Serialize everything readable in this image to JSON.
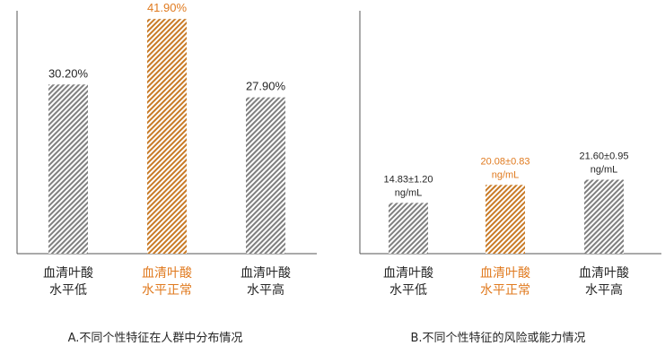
{
  "colors": {
    "normal_bar": "#7f7f7f",
    "highlight_bar": "#c87a26",
    "normal_text": "#262626",
    "highlight_text": "#e07a1f",
    "axis": "#555555"
  },
  "chart_data": [
    {
      "type": "bar",
      "title": "",
      "caption": "A.不同个性特征在人群中分布情况",
      "xlabel": "",
      "ylabel": "",
      "grid": false,
      "legend": "none",
      "unit": "%",
      "categories": [
        "血清叶酸水平低",
        "血清叶酸水平正常",
        "血清叶酸水平高"
      ],
      "category_lines": [
        [
          "血清叶酸",
          "水平低"
        ],
        [
          "血清叶酸",
          "水平正常"
        ],
        [
          "血清叶酸",
          "水平高"
        ]
      ],
      "values": [
        30.2,
        41.9,
        27.9
      ],
      "data_labels": [
        [
          "30.20%"
        ],
        [
          "41.90%"
        ],
        [
          "27.90%"
        ]
      ],
      "highlight_index": 1,
      "ylim": [
        0,
        44
      ]
    },
    {
      "type": "bar",
      "title": "",
      "caption": "B.不同个性特征的风险或能力情况",
      "xlabel": "",
      "ylabel": "",
      "grid": false,
      "legend": "none",
      "unit": "ng/mL",
      "categories": [
        "血清叶酸水平低",
        "血清叶酸水平正常",
        "血清叶酸水平高"
      ],
      "category_lines": [
        [
          "血清叶酸",
          "水平低"
        ],
        [
          "血清叶酸",
          "水平正常"
        ],
        [
          "血清叶酸",
          "水平高"
        ]
      ],
      "values": [
        14.83,
        20.08,
        21.6
      ],
      "errors": [
        1.2,
        0.83,
        0.95
      ],
      "data_labels": [
        [
          "14.83±1.20",
          "ng/mL"
        ],
        [
          "20.08±0.83",
          "ng/mL"
        ],
        [
          "21.60±0.95",
          "ng/mL"
        ]
      ],
      "highlight_index": 1,
      "ylim": [
        0,
        72
      ]
    }
  ]
}
